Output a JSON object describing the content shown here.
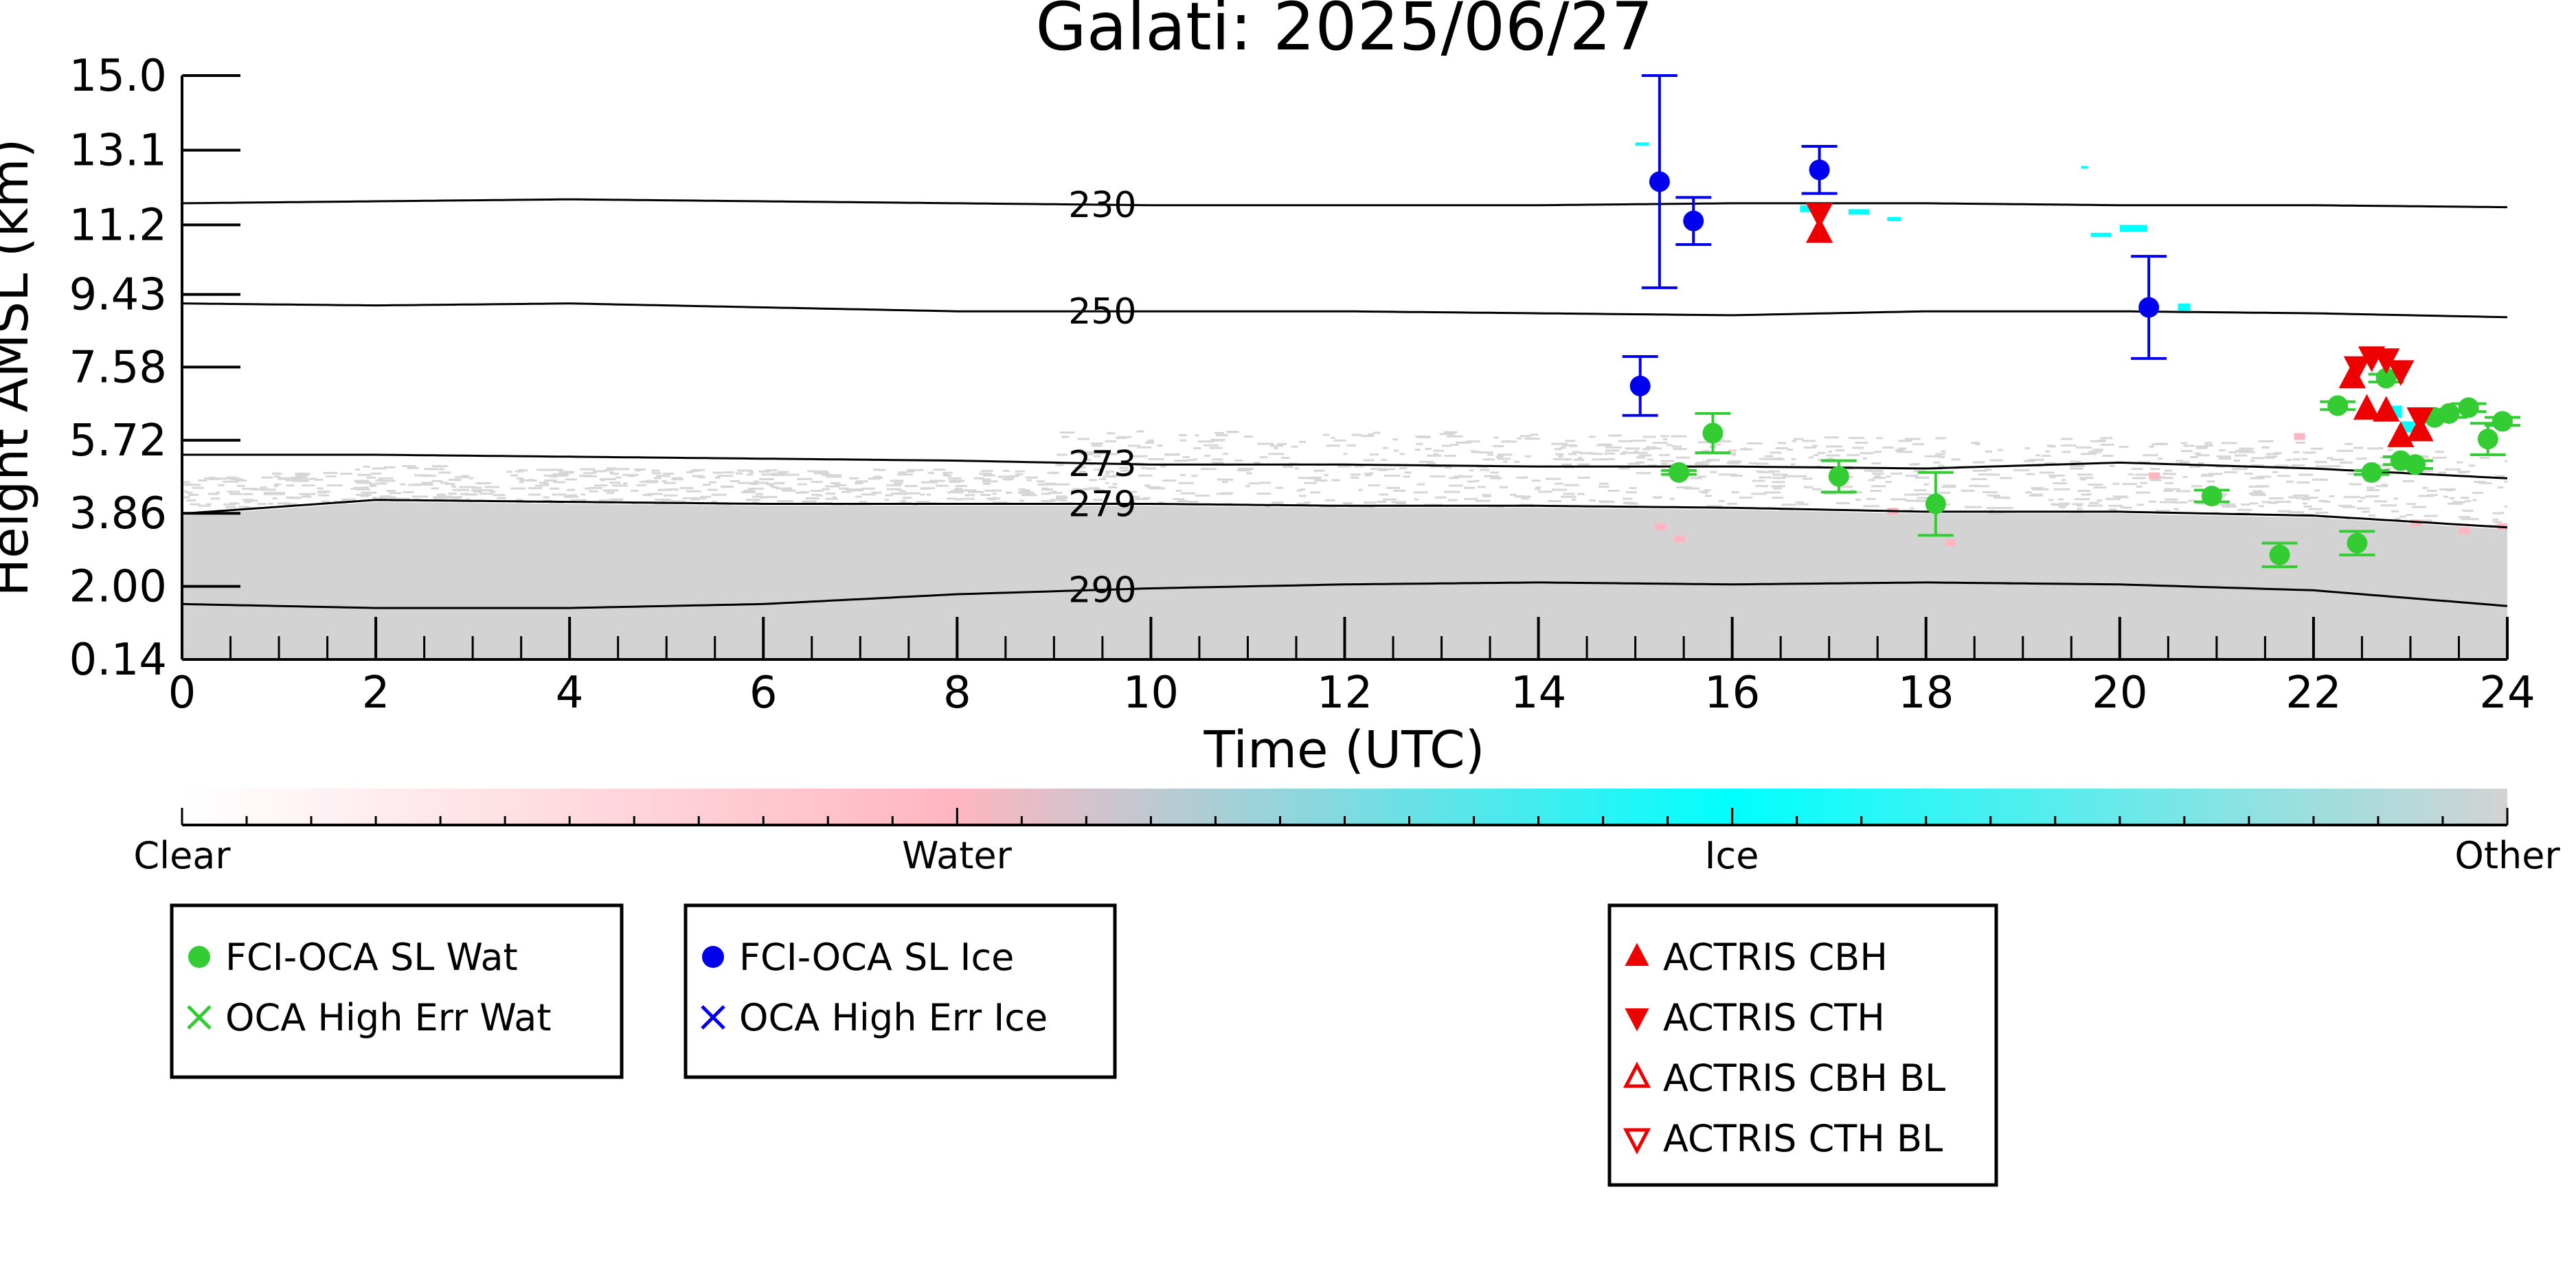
{
  "chart_data": {
    "type": "scatter",
    "title": "Galati: 2025/06/27",
    "xlabel": "Time (UTC)",
    "ylabel": "Height AMSL (km)",
    "xlim": [
      0,
      24
    ],
    "ylim": [
      0.14,
      15.0
    ],
    "x_ticks": [
      "0",
      "2",
      "4",
      "6",
      "8",
      "10",
      "12",
      "14",
      "16",
      "18",
      "20",
      "22",
      "24"
    ],
    "y_ticks": [
      "15.0",
      "13.1",
      "11.2",
      "9.43",
      "7.58",
      "5.72",
      "3.86",
      "2.00",
      "0.14"
    ],
    "colorbar": {
      "labels": [
        "Clear",
        "Water",
        "Ice",
        "Other"
      ],
      "colors": [
        "#ffffff",
        "#ffb6c1",
        "#00ffff",
        "#d3d3d3"
      ]
    },
    "temperature_contours": [
      {
        "label": "230",
        "x": [
          0,
          2,
          4,
          6,
          8,
          10,
          12,
          14,
          16,
          18,
          20,
          22,
          24
        ],
        "y": [
          11.75,
          11.8,
          11.85,
          11.8,
          11.75,
          11.7,
          11.7,
          11.7,
          11.75,
          11.75,
          11.7,
          11.7,
          11.65
        ]
      },
      {
        "label": "250",
        "x": [
          0,
          2,
          4,
          6,
          8,
          10,
          12,
          14,
          16,
          18,
          20,
          22,
          24
        ],
        "y": [
          9.2,
          9.15,
          9.2,
          9.1,
          9.0,
          9.0,
          9.0,
          8.95,
          8.9,
          9.0,
          9.0,
          8.95,
          8.85
        ]
      },
      {
        "label": "273",
        "x": [
          0,
          2,
          4,
          6,
          8,
          10,
          12,
          14,
          16,
          18,
          20,
          22,
          24
        ],
        "y": [
          5.35,
          5.35,
          5.3,
          5.25,
          5.2,
          5.1,
          5.1,
          5.05,
          5.05,
          5.0,
          5.15,
          5.0,
          4.75
        ]
      },
      {
        "label": "279",
        "x": [
          0,
          2,
          4,
          6,
          8,
          10,
          12,
          14,
          16,
          18,
          20,
          22,
          24
        ],
        "y": [
          3.85,
          4.2,
          4.15,
          4.1,
          4.1,
          4.1,
          4.05,
          4.05,
          4.0,
          3.9,
          3.9,
          3.8,
          3.5
        ]
      },
      {
        "label": "290",
        "x": [
          0,
          2,
          4,
          6,
          8,
          10,
          12,
          14,
          16,
          18,
          20,
          22,
          24
        ],
        "y": [
          1.55,
          1.45,
          1.45,
          1.55,
          1.8,
          1.95,
          2.05,
          2.1,
          2.05,
          2.1,
          2.05,
          1.9,
          1.5
        ]
      }
    ],
    "series": [
      {
        "name": "FCI-OCA SL Wat",
        "color": "#33cc33",
        "marker": "circle",
        "points": [
          {
            "x": 15.45,
            "y": 4.9,
            "err": 0.05
          },
          {
            "x": 15.8,
            "y": 5.9,
            "err": 0.5
          },
          {
            "x": 17.1,
            "y": 4.8,
            "err": 0.4
          },
          {
            "x": 18.1,
            "y": 4.1,
            "err": 0.8
          },
          {
            "x": 20.95,
            "y": 4.3,
            "err": 0.15
          },
          {
            "x": 21.65,
            "y": 2.8,
            "err": 0.3
          },
          {
            "x": 22.25,
            "y": 6.6,
            "err": 0.1
          },
          {
            "x": 22.45,
            "y": 3.1,
            "err": 0.3
          },
          {
            "x": 22.6,
            "y": 4.9,
            "err": 0.05
          },
          {
            "x": 22.75,
            "y": 7.3,
            "err": 0.1
          },
          {
            "x": 22.9,
            "y": 5.2,
            "err": 0.1
          },
          {
            "x": 23.05,
            "y": 5.1,
            "err": 0.1
          },
          {
            "x": 23.25,
            "y": 6.3,
            "err": 0.1
          },
          {
            "x": 23.4,
            "y": 6.4,
            "err": 0.1
          },
          {
            "x": 23.6,
            "y": 6.55,
            "err": 0.1
          },
          {
            "x": 23.8,
            "y": 5.75,
            "err": 0.4
          },
          {
            "x": 23.95,
            "y": 6.2,
            "err": 0.1
          }
        ]
      },
      {
        "name": "OCA High Err Wat",
        "color": "#33cc33",
        "marker": "x",
        "points": []
      },
      {
        "name": "FCI-OCA SL Ice",
        "color": "#0000ee",
        "marker": "circle",
        "points": [
          {
            "x": 15.05,
            "y": 7.1,
            "err": 0.75
          },
          {
            "x": 15.25,
            "y": 12.3,
            "err": 2.7
          },
          {
            "x": 15.6,
            "y": 11.3,
            "err": 0.6
          },
          {
            "x": 16.9,
            "y": 12.6,
            "err": 0.6
          },
          {
            "x": 20.3,
            "y": 9.1,
            "err": 1.3
          }
        ]
      },
      {
        "name": "OCA High Err Ice",
        "color": "#0000ee",
        "marker": "x",
        "points": []
      },
      {
        "name": "ACTRIS CBH",
        "color": "#ee0000",
        "marker": "triangle-up",
        "points": [
          {
            "x": 16.9,
            "y": 11.0
          },
          {
            "x": 22.4,
            "y": 7.3
          },
          {
            "x": 22.55,
            "y": 6.5
          },
          {
            "x": 22.75,
            "y": 6.45
          },
          {
            "x": 22.9,
            "y": 5.8
          },
          {
            "x": 23.1,
            "y": 5.95
          }
        ]
      },
      {
        "name": "ACTRIS CTH",
        "color": "#ee0000",
        "marker": "triangle-down",
        "points": [
          {
            "x": 16.9,
            "y": 11.5
          },
          {
            "x": 22.45,
            "y": 7.6
          },
          {
            "x": 22.6,
            "y": 7.85
          },
          {
            "x": 22.75,
            "y": 7.8
          },
          {
            "x": 22.9,
            "y": 7.5
          },
          {
            "x": 23.1,
            "y": 6.3
          }
        ]
      },
      {
        "name": "ACTRIS CBH BL",
        "color": "#ee0000",
        "marker": "triangle-up-open",
        "points": []
      },
      {
        "name": "ACTRIS CTH BL",
        "color": "#ee0000",
        "marker": "triangle-down-open",
        "points": []
      }
    ],
    "legend_groups": [
      [
        "FCI-OCA SL Wat",
        "OCA High Err Wat"
      ],
      [
        "FCI-OCA SL Ice",
        "OCA High Err Ice"
      ],
      [
        "ACTRIS CBH",
        "ACTRIS CTH",
        "ACTRIS CBH BL",
        "ACTRIS CTH BL"
      ]
    ]
  }
}
